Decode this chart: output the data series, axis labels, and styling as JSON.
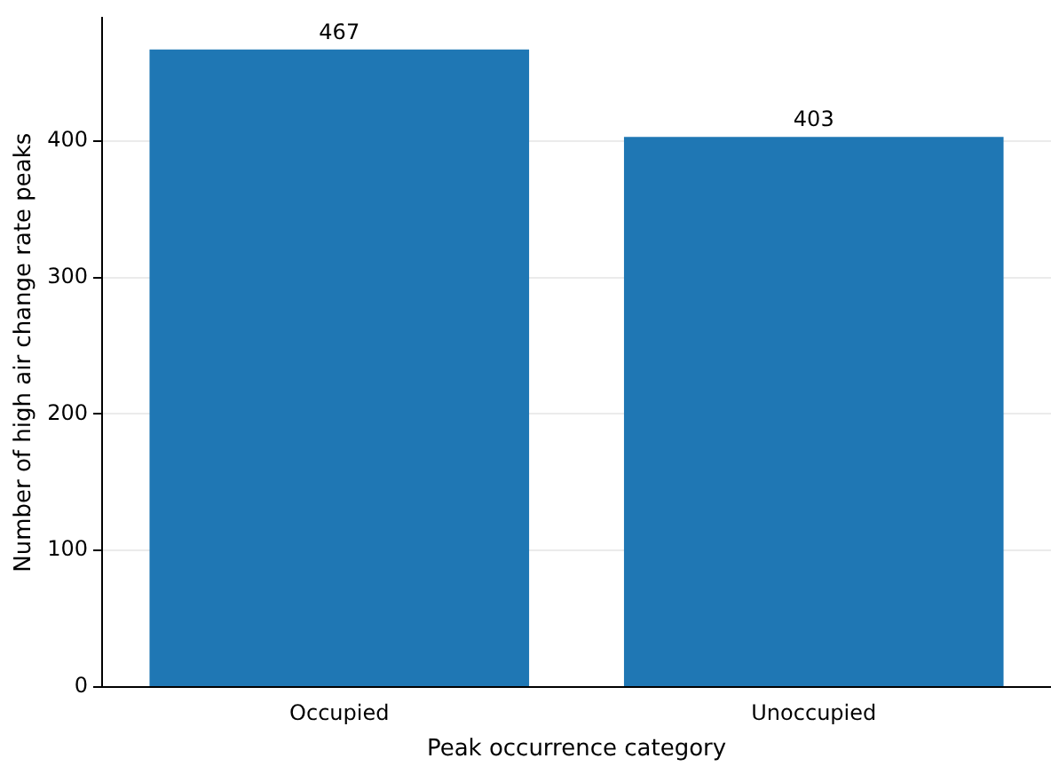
{
  "chart_data": {
    "type": "bar",
    "xlabel": "Peak occurrence category",
    "ylabel": "Number of high air change rate peaks",
    "categories": [
      "Occupied",
      "Unoccupied"
    ],
    "values": [
      467,
      403
    ],
    "color": "#1f77b4",
    "ylim": [
      0,
      490
    ],
    "yticks": [
      0,
      100,
      200,
      300,
      400
    ],
    "grid": "y",
    "data_labels": true
  }
}
